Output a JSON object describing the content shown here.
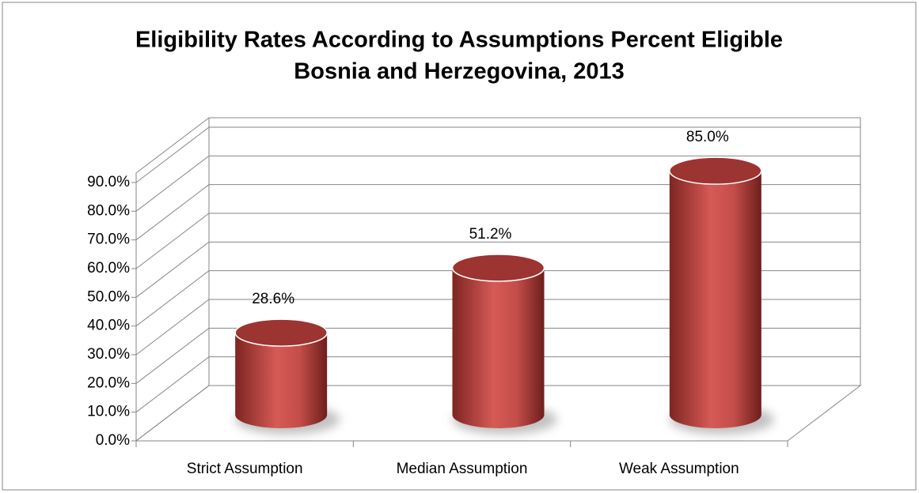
{
  "chart_data": {
    "type": "bar3d",
    "title": "Eligibility Rates According to Assumptions Percent Eligible",
    "subtitle": "Bosnia and Herzegovina, 2013",
    "categories": [
      "Strict Assumption",
      "Median Assumption",
      "Weak Assumption"
    ],
    "values": [
      28.6,
      51.2,
      85.0
    ],
    "value_labels": [
      "28.6%",
      "51.2%",
      "85.0%"
    ],
    "color": "#c0504d",
    "ylim": [
      0,
      90
    ],
    "yticks": [
      {
        "value": 0,
        "label": "0.0%"
      },
      {
        "value": 10,
        "label": "10.0%"
      },
      {
        "value": 20,
        "label": "20.0%"
      },
      {
        "value": 30,
        "label": "30.0%"
      },
      {
        "value": 40,
        "label": "40.0%"
      },
      {
        "value": 50,
        "label": "50.0%"
      },
      {
        "value": 60,
        "label": "60.0%"
      },
      {
        "value": 70,
        "label": "70.0%"
      },
      {
        "value": 80,
        "label": "80.0%"
      },
      {
        "value": 90,
        "label": "90.0%"
      }
    ],
    "grid": true
  }
}
